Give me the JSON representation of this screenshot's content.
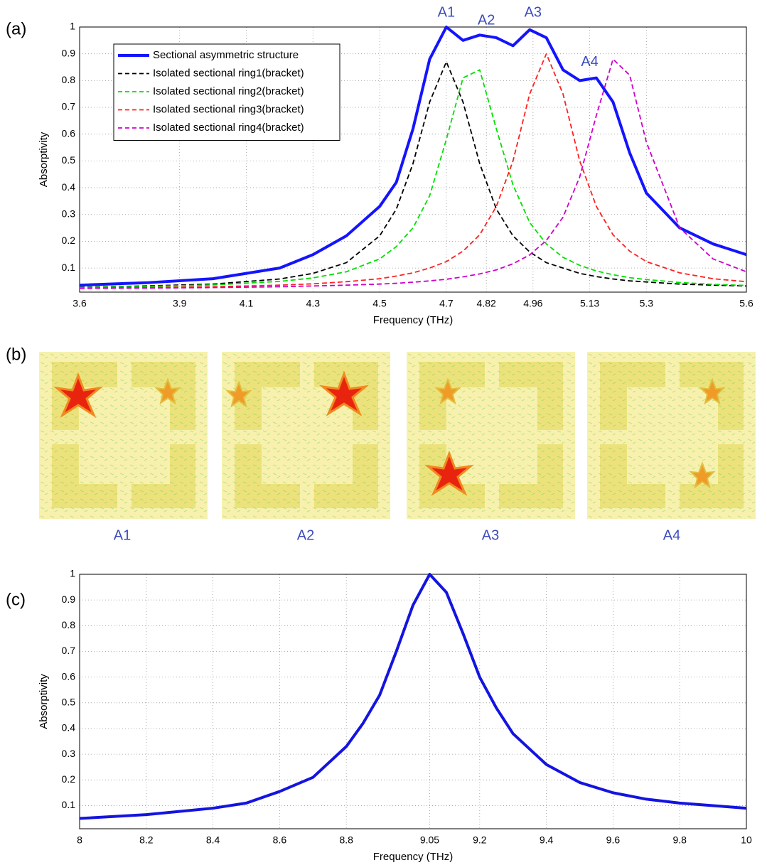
{
  "panel_labels": [
    "(a)",
    "(b)",
    "(c)"
  ],
  "field_maps": {
    "labels": [
      "A1",
      "A2",
      "A3",
      "A4"
    ]
  },
  "chart_data": [
    {
      "type": "line",
      "x_label": "Frequency (THz)",
      "y_label": "Absorptivity",
      "x": [
        3.6,
        3.8,
        4.0,
        4.2,
        4.3,
        4.4,
        4.5,
        4.55,
        4.6,
        4.65,
        4.7,
        4.75,
        4.8,
        4.85,
        4.9,
        4.95,
        5.0,
        5.05,
        5.1,
        5.15,
        5.2,
        5.25,
        5.3,
        5.4,
        5.5,
        5.6
      ],
      "series": [
        {
          "name": "Sectional asymmetric structure",
          "color": "#1414ff",
          "line_style": "solid",
          "values": [
            0.036,
            0.045,
            0.06,
            0.1,
            0.15,
            0.22,
            0.33,
            0.42,
            0.62,
            0.88,
            1.0,
            0.95,
            0.97,
            0.96,
            0.93,
            0.99,
            0.96,
            0.84,
            0.8,
            0.81,
            0.72,
            0.53,
            0.38,
            0.25,
            0.19,
            0.15
          ]
        },
        {
          "name": "Isolated sectional ring1(bracket)",
          "color": "#000000",
          "line_style": "dashed",
          "values": [
            0.028,
            0.033,
            0.04,
            0.059,
            0.08,
            0.12,
            0.22,
            0.32,
            0.49,
            0.72,
            0.87,
            0.72,
            0.49,
            0.32,
            0.22,
            0.16,
            0.12,
            0.1,
            0.08,
            0.068,
            0.059,
            0.052,
            0.048,
            0.04,
            0.036,
            0.033
          ]
        },
        {
          "name": "Isolated sectional ring2(bracket)",
          "color": "#00e000",
          "line_style": "dashed",
          "values": [
            0.027,
            0.031,
            0.037,
            0.05,
            0.063,
            0.086,
            0.134,
            0.18,
            0.25,
            0.37,
            0.58,
            0.81,
            0.84,
            0.62,
            0.41,
            0.27,
            0.19,
            0.14,
            0.11,
            0.089,
            0.075,
            0.064,
            0.057,
            0.046,
            0.039,
            0.035
          ]
        },
        {
          "name": "Isolated sectional ring3(bracket)",
          "color": "#ff2020",
          "line_style": "dashed",
          "values": [
            0.025,
            0.027,
            0.03,
            0.036,
            0.041,
            0.049,
            0.06,
            0.07,
            0.082,
            0.1,
            0.124,
            0.163,
            0.224,
            0.33,
            0.5,
            0.75,
            0.9,
            0.75,
            0.5,
            0.33,
            0.224,
            0.163,
            0.124,
            0.082,
            0.06,
            0.049
          ]
        },
        {
          "name": "Isolated sectional ring4(bracket)",
          "color": "#cc00cc",
          "line_style": "dashed",
          "values": [
            0.024,
            0.025,
            0.027,
            0.03,
            0.033,
            0.036,
            0.04,
            0.043,
            0.047,
            0.052,
            0.058,
            0.067,
            0.078,
            0.093,
            0.116,
            0.149,
            0.203,
            0.29,
            0.44,
            0.67,
            0.88,
            0.82,
            0.57,
            0.25,
            0.134,
            0.086
          ]
        }
      ],
      "annotations": [
        {
          "text": "A1",
          "x": 4.7,
          "y": 1.0
        },
        {
          "text": "A2",
          "x": 4.82,
          "y": 0.97
        },
        {
          "text": "A3",
          "x": 4.96,
          "y": 1.0
        },
        {
          "text": "A4",
          "x": 5.13,
          "y": 0.815
        }
      ],
      "xlim": [
        3.6,
        5.6
      ],
      "xticks": [
        3.6,
        3.9,
        4.1,
        4.3,
        4.5,
        4.7,
        4.82,
        4.96,
        5.13,
        5.3,
        5.6
      ],
      "ylim": [
        0.01,
        1
      ],
      "yticks": [
        0.1,
        0.2,
        0.3,
        0.4,
        0.5,
        0.6,
        0.7,
        0.8,
        0.9,
        1
      ],
      "grid": true,
      "legend": "upper left"
    },
    {
      "type": "line",
      "x_label": "Frequency (THz)",
      "y_label": "Absorptivity",
      "x": [
        8.0,
        8.2,
        8.4,
        8.5,
        8.6,
        8.7,
        8.8,
        8.85,
        8.9,
        8.95,
        9.0,
        9.05,
        9.1,
        9.15,
        9.2,
        9.25,
        9.3,
        9.4,
        9.5,
        9.6,
        9.7,
        9.8,
        9.9,
        10.0
      ],
      "series": [
        {
          "color": "#1414e0",
          "line_style": "solid",
          "values": [
            0.05,
            0.065,
            0.09,
            0.11,
            0.155,
            0.21,
            0.33,
            0.42,
            0.53,
            0.7,
            0.88,
            1.0,
            0.93,
            0.77,
            0.6,
            0.48,
            0.38,
            0.26,
            0.19,
            0.15,
            0.125,
            0.11,
            0.1,
            0.09
          ]
        }
      ],
      "xlim": [
        8,
        10
      ],
      "xticks": [
        8,
        8.2,
        8.4,
        8.6,
        8.8,
        9.05,
        9.2,
        9.4,
        9.6,
        9.8,
        10
      ],
      "ylim": [
        0.01,
        1
      ],
      "yticks": [
        0.1,
        0.2,
        0.3,
        0.4,
        0.5,
        0.6,
        0.7,
        0.8,
        0.9,
        1
      ],
      "grid": true
    }
  ]
}
